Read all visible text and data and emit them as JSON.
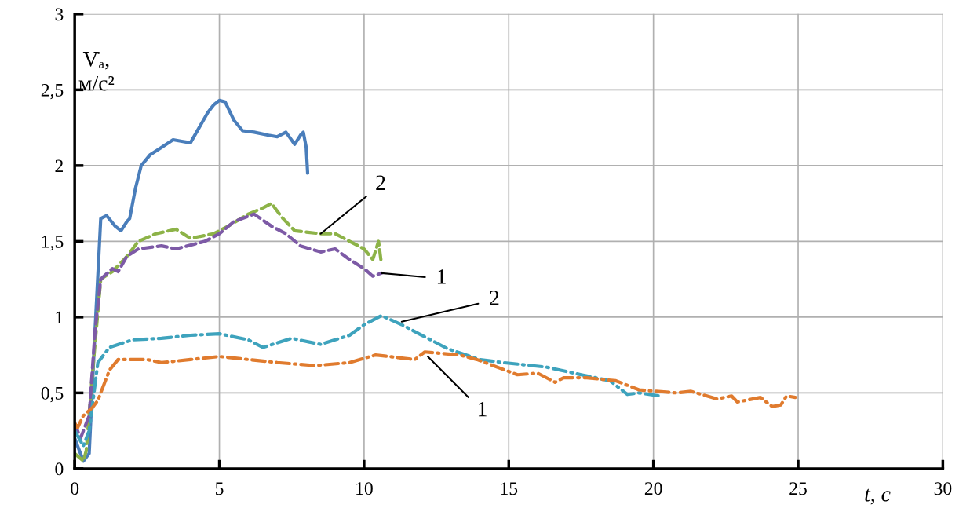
{
  "chart_data": {
    "type": "line",
    "xlabel": "t, с",
    "ylabel": "V̇ₐ,\nм/с²",
    "xlim": [
      0,
      30
    ],
    "xticks": [
      0,
      5,
      10,
      15,
      20,
      25,
      30
    ],
    "ylim": [
      0,
      3
    ],
    "yticks": [
      0,
      {
        "value": 0.5,
        "label": "0,5"
      },
      1,
      {
        "value": 1.5,
        "label": "1,5"
      },
      2,
      {
        "value": 2.5,
        "label": "2,5"
      },
      3
    ],
    "grid": true,
    "marker": "none",
    "series": [
      {
        "color": "#4a7ebb",
        "line_style": "solid",
        "x": [
          0,
          0.3,
          0.5,
          0.7,
          0.9,
          1.1,
          1.4,
          1.6,
          1.8,
          1.9,
          2.1,
          2.3,
          2.6,
          3.0,
          3.4,
          3.7,
          4.0,
          4.3,
          4.6,
          4.8,
          5.0,
          5.2,
          5.5,
          5.8,
          6.2,
          6.7,
          7.0,
          7.3,
          7.6,
          7.8,
          7.9,
          8.0,
          8.05
        ],
        "values": [
          0.2,
          0.05,
          0.1,
          0.9,
          1.65,
          1.67,
          1.6,
          1.57,
          1.63,
          1.65,
          1.85,
          2.0,
          2.07,
          2.12,
          2.17,
          2.16,
          2.15,
          2.25,
          2.35,
          2.4,
          2.43,
          2.42,
          2.3,
          2.23,
          2.22,
          2.2,
          2.19,
          2.22,
          2.14,
          2.2,
          2.22,
          2.12,
          1.95
        ]
      },
      {
        "color": "#8db348",
        "line_style": "dashed",
        "x": [
          0,
          0.3,
          0.4,
          0.6,
          0.9,
          1.3,
          1.8,
          2.2,
          2.8,
          3.5,
          4.0,
          4.8,
          5.3,
          6.0,
          6.5,
          6.8,
          7.2,
          7.6,
          8.5,
          9.0,
          9.5,
          10.0,
          10.3,
          10.5,
          10.6
        ],
        "values": [
          0.1,
          0.05,
          0.12,
          0.6,
          1.25,
          1.3,
          1.4,
          1.5,
          1.55,
          1.58,
          1.52,
          1.55,
          1.6,
          1.68,
          1.72,
          1.75,
          1.65,
          1.57,
          1.55,
          1.55,
          1.5,
          1.45,
          1.38,
          1.5,
          1.35
        ]
      },
      {
        "color": "#7d5aa6",
        "line_style": "dashed",
        "x": [
          0,
          0.2,
          0.5,
          0.7,
          0.9,
          1.3,
          1.5,
          1.8,
          2.2,
          3.0,
          3.5,
          4.5,
          5.0,
          5.5,
          6.2,
          6.8,
          7.3,
          7.8,
          8.5,
          9.0,
          9.5,
          10.0,
          10.3,
          10.6
        ],
        "values": [
          0.3,
          0.2,
          0.35,
          0.9,
          1.25,
          1.32,
          1.3,
          1.4,
          1.45,
          1.47,
          1.45,
          1.5,
          1.55,
          1.63,
          1.68,
          1.6,
          1.55,
          1.47,
          1.43,
          1.45,
          1.38,
          1.32,
          1.27,
          1.29
        ]
      },
      {
        "color": "#3ea3bd",
        "line_style": "dashdot",
        "x": [
          0,
          0.3,
          0.5,
          0.8,
          1.2,
          2.0,
          3.0,
          4.0,
          5.0,
          6.0,
          6.5,
          7.5,
          8.5,
          9.5,
          10.0,
          10.6,
          11.3,
          12.0,
          12.9,
          14.0,
          14.8,
          16.3,
          17.5,
          18.5,
          19.1,
          19.5,
          20.2
        ],
        "values": [
          0.25,
          0.15,
          0.25,
          0.7,
          0.8,
          0.85,
          0.86,
          0.88,
          0.89,
          0.85,
          0.8,
          0.86,
          0.82,
          0.88,
          0.95,
          1.01,
          0.95,
          0.88,
          0.79,
          0.72,
          0.7,
          0.67,
          0.62,
          0.58,
          0.49,
          0.5,
          0.48
        ]
      },
      {
        "color": "#e07b2e",
        "line_style": "dashdot",
        "x": [
          0,
          0.1,
          0.3,
          0.6,
          0.8,
          1.0,
          1.2,
          1.5,
          2.5,
          3.0,
          4.0,
          5.0,
          6.0,
          7.0,
          8.3,
          9.5,
          10.4,
          11.75,
          12.1,
          13.3,
          13.9,
          15.3,
          16.0,
          16.6,
          16.9,
          17.7,
          18.7,
          19.5,
          20.8,
          21.3,
          22.2,
          22.7,
          22.9,
          23.7,
          24.1,
          24.4,
          24.6,
          24.9
        ],
        "values": [
          0.3,
          0.27,
          0.35,
          0.4,
          0.45,
          0.55,
          0.65,
          0.72,
          0.72,
          0.7,
          0.72,
          0.74,
          0.72,
          0.7,
          0.68,
          0.7,
          0.75,
          0.72,
          0.77,
          0.75,
          0.72,
          0.62,
          0.63,
          0.57,
          0.6,
          0.6,
          0.58,
          0.52,
          0.5,
          0.51,
          0.46,
          0.48,
          0.44,
          0.47,
          0.41,
          0.42,
          0.48,
          0.47
        ]
      }
    ],
    "annotations": [
      {
        "text": "2",
        "x": 8.5,
        "y": 1.55
      },
      {
        "text": "1",
        "x": 10.6,
        "y": 1.29
      },
      {
        "text": "2",
        "x": 11.3,
        "y": 0.97
      },
      {
        "text": "1",
        "x": 12.2,
        "y": 0.74
      }
    ]
  }
}
